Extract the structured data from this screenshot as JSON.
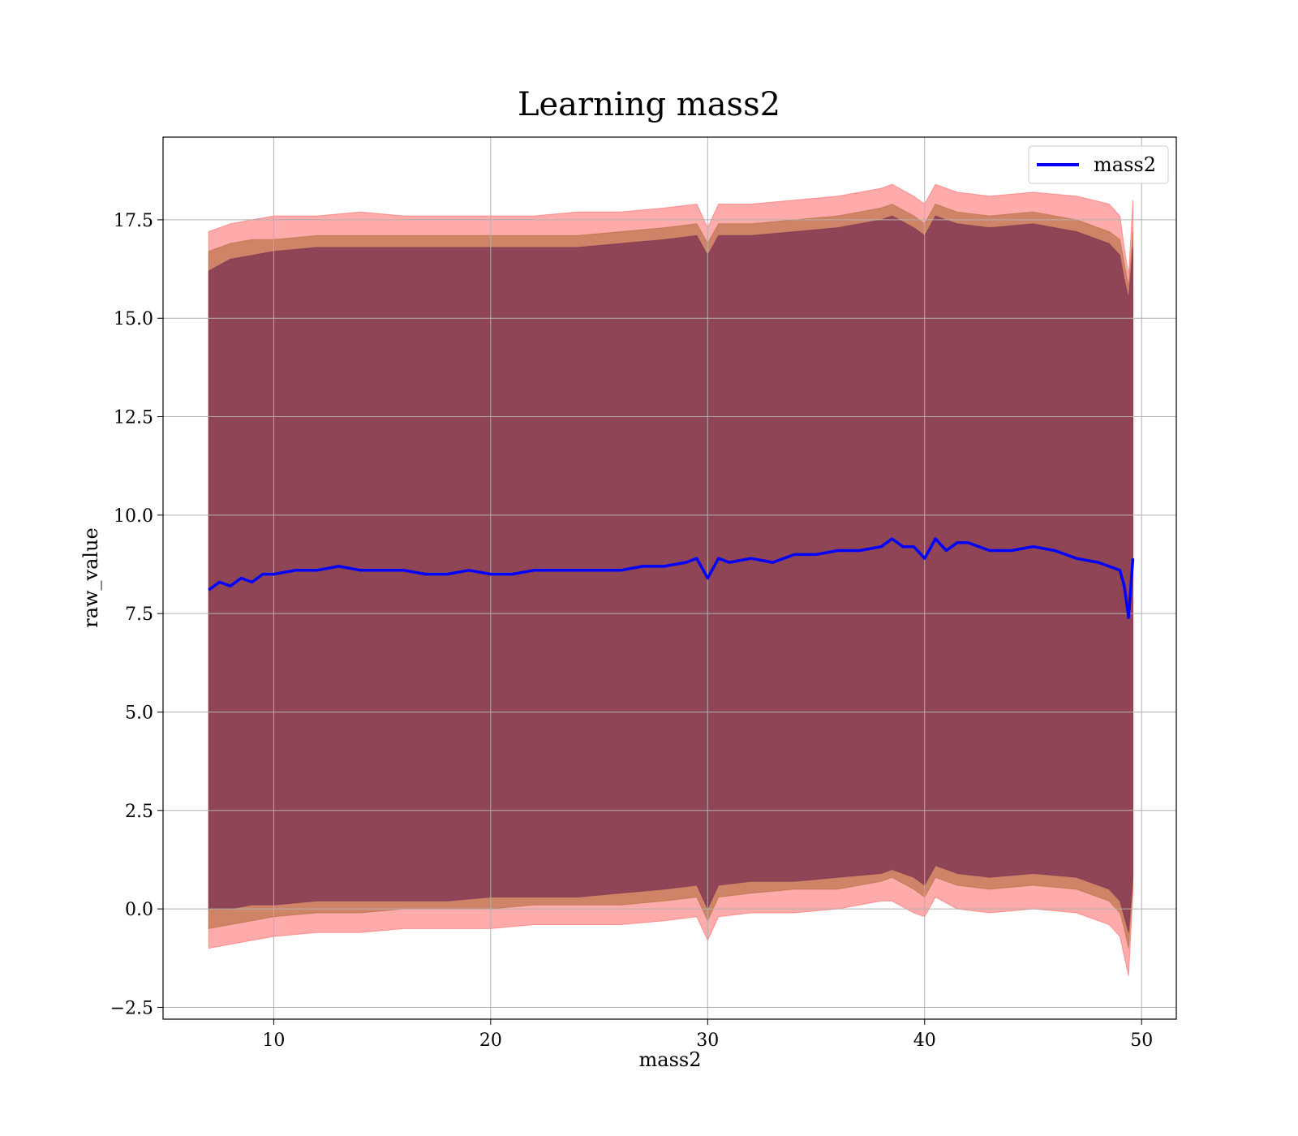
{
  "chart_data": {
    "type": "line",
    "title": "Learning mass2",
    "xlabel": "mass2",
    "ylabel": "raw_value",
    "xlim": [
      4.9,
      51.6
    ],
    "ylim": [
      -2.8,
      19.6
    ],
    "xticks": [
      10,
      20,
      30,
      40,
      50
    ],
    "xtick_labels": [
      "10",
      "20",
      "30",
      "40",
      "50"
    ],
    "yticks": [
      -2.5,
      0.0,
      2.5,
      5.0,
      7.5,
      10.0,
      12.5,
      15.0,
      17.5
    ],
    "ytick_labels": [
      "−2.5",
      "0.0",
      "2.5",
      "5.0",
      "7.5",
      "10.0",
      "12.5",
      "15.0",
      "17.5"
    ],
    "grid": true,
    "legend_position": "top-right",
    "series": [
      {
        "name": "mass2",
        "role": "mean-line",
        "color": "#0000ff",
        "x": [
          7.0,
          7.5,
          8.0,
          8.5,
          9.0,
          9.5,
          10.0,
          11.0,
          12.0,
          13.0,
          14.0,
          15.0,
          16.0,
          17.0,
          18.0,
          19.0,
          20.0,
          21.0,
          22.0,
          23.0,
          24.0,
          25.0,
          26.0,
          27.0,
          28.0,
          29.0,
          29.5,
          30.0,
          30.5,
          31.0,
          32.0,
          33.0,
          34.0,
          35.0,
          36.0,
          37.0,
          38.0,
          38.5,
          39.0,
          39.5,
          40.0,
          40.5,
          41.0,
          41.5,
          42.0,
          43.0,
          44.0,
          45.0,
          46.0,
          47.0,
          48.0,
          48.5,
          49.0,
          49.2,
          49.4,
          49.6
        ],
        "y": [
          8.1,
          8.3,
          8.2,
          8.4,
          8.3,
          8.5,
          8.5,
          8.6,
          8.6,
          8.7,
          8.6,
          8.6,
          8.6,
          8.5,
          8.5,
          8.6,
          8.5,
          8.5,
          8.6,
          8.6,
          8.6,
          8.6,
          8.6,
          8.7,
          8.7,
          8.8,
          8.9,
          8.4,
          8.9,
          8.8,
          8.9,
          8.8,
          9.0,
          9.0,
          9.1,
          9.1,
          9.2,
          9.4,
          9.2,
          9.2,
          8.9,
          9.4,
          9.1,
          9.3,
          9.3,
          9.1,
          9.1,
          9.2,
          9.1,
          8.9,
          8.8,
          8.7,
          8.6,
          8.2,
          7.4,
          8.9
        ]
      },
      {
        "name": "",
        "role": "outer-band",
        "color": "#ff6666",
        "x": [
          7.0,
          8.0,
          9.0,
          10.0,
          12.0,
          14.0,
          16.0,
          18.0,
          20.0,
          22.0,
          24.0,
          26.0,
          28.0,
          29.5,
          30.0,
          30.5,
          32.0,
          34.0,
          36.0,
          38.0,
          38.5,
          39.5,
          40.0,
          40.5,
          41.5,
          43.0,
          45.0,
          47.0,
          48.5,
          49.0,
          49.2,
          49.4,
          49.6
        ],
        "upper": [
          17.2,
          17.4,
          17.5,
          17.6,
          17.6,
          17.7,
          17.6,
          17.6,
          17.6,
          17.6,
          17.7,
          17.7,
          17.8,
          17.9,
          17.3,
          17.9,
          17.9,
          18.0,
          18.1,
          18.3,
          18.4,
          18.1,
          17.9,
          18.4,
          18.2,
          18.1,
          18.2,
          18.1,
          17.9,
          17.6,
          16.8,
          16.1,
          18.0
        ],
        "lower": [
          -1.0,
          -0.9,
          -0.8,
          -0.7,
          -0.6,
          -0.6,
          -0.5,
          -0.5,
          -0.5,
          -0.4,
          -0.4,
          -0.4,
          -0.3,
          -0.2,
          -0.8,
          -0.2,
          -0.1,
          -0.1,
          0.0,
          0.2,
          0.2,
          -0.1,
          -0.2,
          0.3,
          0.0,
          -0.1,
          0.0,
          -0.1,
          -0.4,
          -0.7,
          -1.2,
          -1.7,
          0.4
        ]
      },
      {
        "name": "",
        "role": "middle-band",
        "color": "#b06a3a",
        "x": [
          7.0,
          8.0,
          9.0,
          10.0,
          12.0,
          14.0,
          16.0,
          18.0,
          20.0,
          22.0,
          24.0,
          26.0,
          28.0,
          29.5,
          30.0,
          30.5,
          32.0,
          34.0,
          36.0,
          38.0,
          38.5,
          39.5,
          40.0,
          40.5,
          41.5,
          43.0,
          45.0,
          47.0,
          48.5,
          49.0,
          49.2,
          49.4,
          49.6
        ],
        "upper": [
          16.7,
          16.9,
          17.0,
          17.0,
          17.1,
          17.1,
          17.1,
          17.1,
          17.1,
          17.1,
          17.1,
          17.2,
          17.3,
          17.4,
          16.9,
          17.4,
          17.4,
          17.5,
          17.6,
          17.8,
          17.9,
          17.6,
          17.4,
          17.9,
          17.7,
          17.6,
          17.7,
          17.5,
          17.2,
          17.0,
          16.4,
          15.8,
          17.2
        ],
        "lower": [
          -0.5,
          -0.4,
          -0.3,
          -0.2,
          -0.1,
          -0.1,
          0.0,
          0.0,
          0.0,
          0.1,
          0.1,
          0.1,
          0.2,
          0.3,
          -0.3,
          0.3,
          0.4,
          0.5,
          0.5,
          0.7,
          0.8,
          0.5,
          0.3,
          0.8,
          0.6,
          0.5,
          0.6,
          0.5,
          0.2,
          -0.1,
          -0.5,
          -1.0,
          0.6
        ]
      },
      {
        "name": "",
        "role": "inner-band",
        "color": "#7a3050",
        "x": [
          7.0,
          8.0,
          9.0,
          10.0,
          12.0,
          14.0,
          16.0,
          18.0,
          20.0,
          22.0,
          24.0,
          26.0,
          28.0,
          29.5,
          30.0,
          30.5,
          32.0,
          34.0,
          36.0,
          38.0,
          38.5,
          39.5,
          40.0,
          40.5,
          41.5,
          43.0,
          45.0,
          47.0,
          48.5,
          49.0,
          49.2,
          49.4,
          49.6
        ],
        "upper": [
          16.2,
          16.5,
          16.6,
          16.7,
          16.8,
          16.8,
          16.8,
          16.8,
          16.8,
          16.8,
          16.8,
          16.9,
          17.0,
          17.1,
          16.6,
          17.1,
          17.1,
          17.2,
          17.3,
          17.5,
          17.6,
          17.3,
          17.1,
          17.6,
          17.4,
          17.3,
          17.4,
          17.2,
          16.9,
          16.6,
          16.0,
          15.5,
          16.8
        ],
        "lower": [
          0.0,
          0.0,
          0.1,
          0.1,
          0.2,
          0.2,
          0.2,
          0.2,
          0.3,
          0.3,
          0.3,
          0.4,
          0.5,
          0.6,
          0.0,
          0.6,
          0.7,
          0.7,
          0.8,
          0.9,
          1.0,
          0.8,
          0.6,
          1.1,
          0.9,
          0.8,
          0.9,
          0.8,
          0.5,
          0.2,
          -0.2,
          -0.6,
          0.8
        ]
      }
    ]
  }
}
